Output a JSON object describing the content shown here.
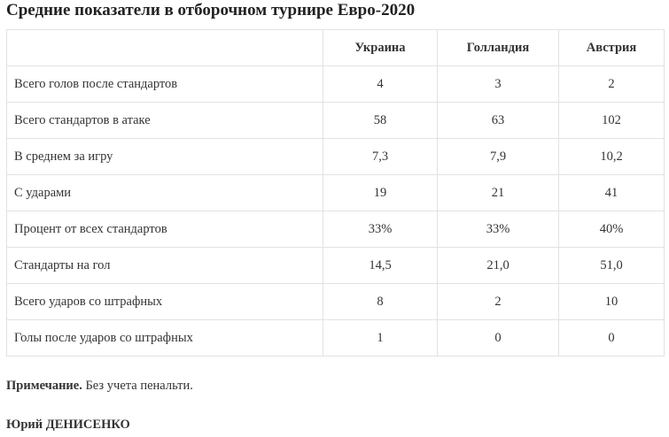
{
  "title": "Средние показатели в отборочном турнире Евро-2020",
  "table": {
    "headers": [
      "",
      "Украина",
      "Голландия",
      "Австрия"
    ],
    "rows": [
      {
        "label": "Всего голов после стандартов",
        "values": [
          "4",
          "3",
          "2"
        ]
      },
      {
        "label": "Всего стандартов в атаке",
        "values": [
          "58",
          "63",
          "102"
        ]
      },
      {
        "label": "В среднем за игру",
        "values": [
          "7,3",
          "7,9",
          "10,2"
        ]
      },
      {
        "label": "С ударами",
        "values": [
          "19",
          "21",
          "41"
        ]
      },
      {
        "label": "Процент от всех стандартов",
        "values": [
          "33%",
          "33%",
          "40%"
        ]
      },
      {
        "label": "Стандарты на гол",
        "values": [
          "14,5",
          "21,0",
          "51,0"
        ]
      },
      {
        "label": "Всего ударов со штрафных",
        "values": [
          "8",
          "2",
          "10"
        ]
      },
      {
        "label": "Голы после ударов со штрафных",
        "values": [
          "1",
          "0",
          "0"
        ]
      }
    ]
  },
  "note": {
    "label": "Примечание.",
    "text": " Без учета пенальти."
  },
  "author": "Юрий ДЕНИСЕНКО"
}
